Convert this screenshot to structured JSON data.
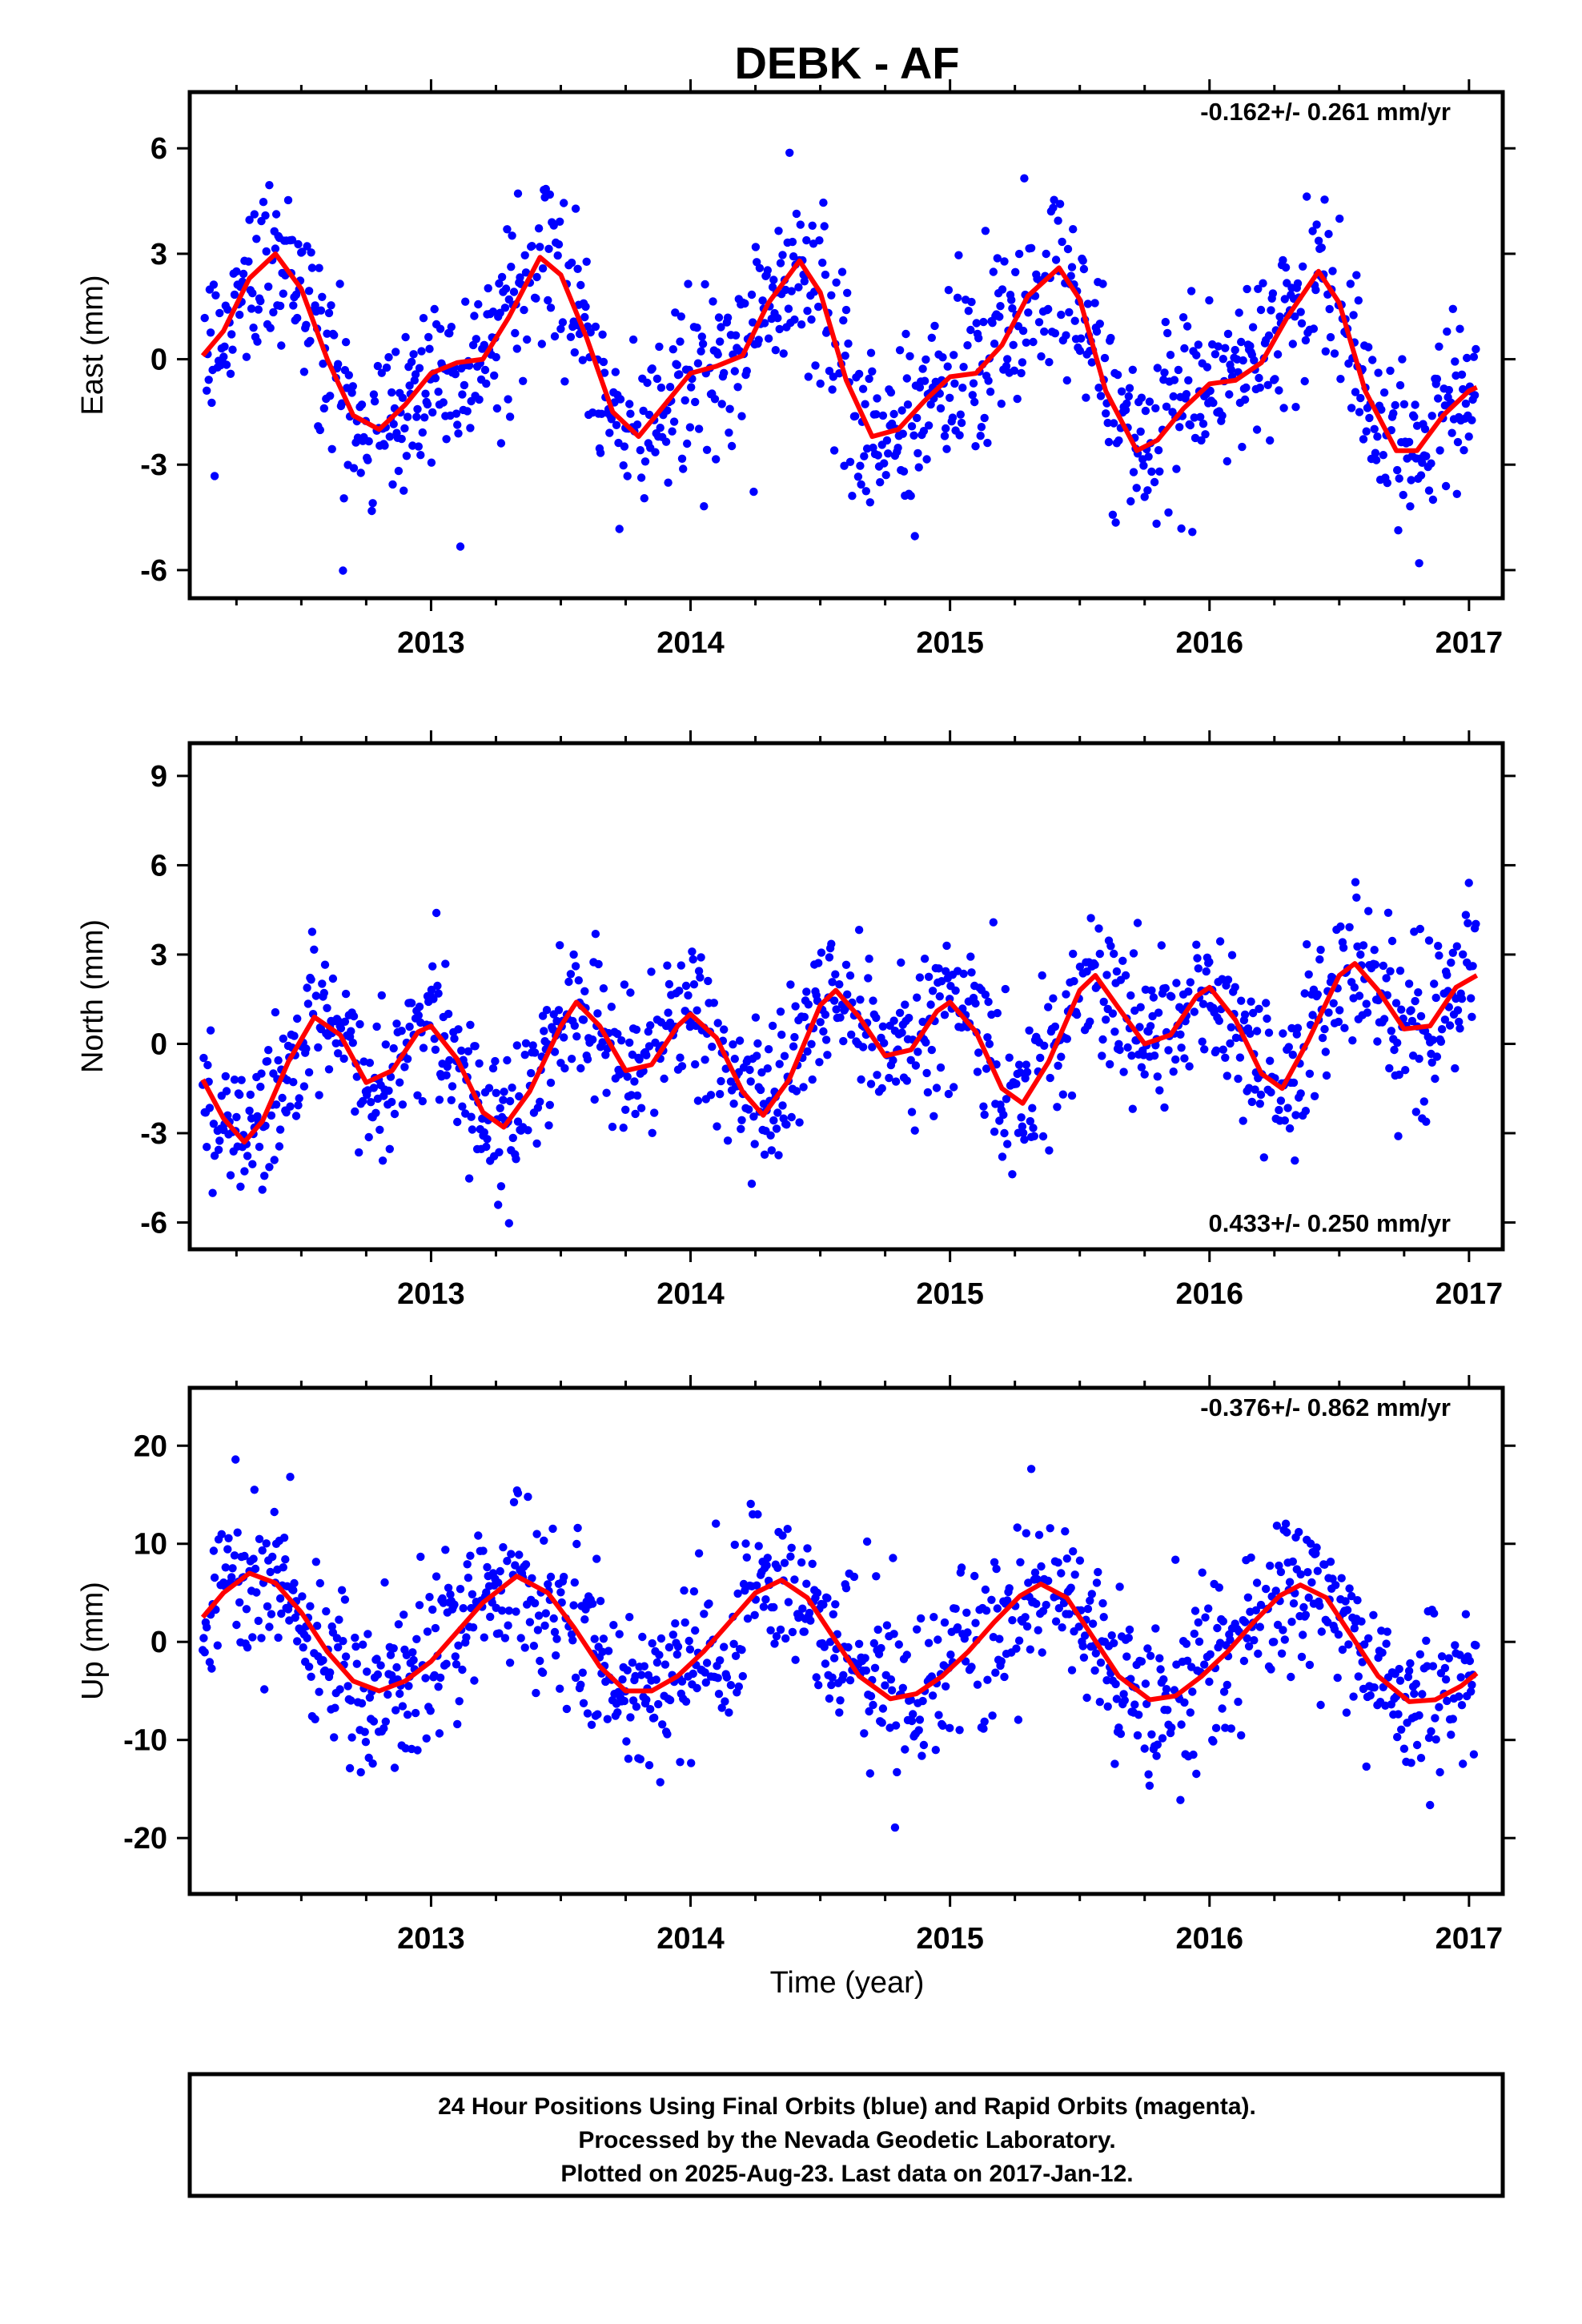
{
  "title": "DEBK - AF",
  "xlabel": "Time (year)",
  "footer": {
    "line1": "24 Hour Positions Using Final Orbits (blue) and Rapid Orbits (magenta).",
    "line2": "Processed by the Nevada Geodetic Laboratory.",
    "line3": "Plotted on 2025-Aug-23. Last data on 2017-Jan-12."
  },
  "colors": {
    "final_orbits": "#0000ff",
    "model": "#ff0000",
    "axes": "#000000"
  },
  "chart_data": [
    {
      "type": "scatter",
      "ylabel": "East (mm)",
      "rate_label": "-0.162+/- 0.261 mm/yr",
      "xlim": [
        2012.07,
        2017.13
      ],
      "ylim": [
        -6.8,
        7.6
      ],
      "xticks": [
        2013,
        2014,
        2015,
        2016,
        2017
      ],
      "yticks": [
        -6,
        -3,
        0,
        3,
        6
      ],
      "xrange_data": [
        2012.12,
        2017.03
      ],
      "scatter_sigma": 1.25,
      "model_points": [
        [
          2012.12,
          0.1
        ],
        [
          2012.2,
          0.8
        ],
        [
          2012.3,
          2.3
        ],
        [
          2012.4,
          3.0
        ],
        [
          2012.5,
          2.0
        ],
        [
          2012.6,
          0.0
        ],
        [
          2012.7,
          -1.6
        ],
        [
          2012.8,
          -2.0
        ],
        [
          2012.9,
          -1.3
        ],
        [
          2013.0,
          -0.4
        ],
        [
          2013.1,
          -0.1
        ],
        [
          2013.2,
          0.0
        ],
        [
          2013.3,
          1.2
        ],
        [
          2013.42,
          2.9
        ],
        [
          2013.5,
          2.4
        ],
        [
          2013.6,
          0.6
        ],
        [
          2013.7,
          -1.5
        ],
        [
          2013.8,
          -2.2
        ],
        [
          2013.9,
          -1.3
        ],
        [
          2014.0,
          -0.4
        ],
        [
          2014.1,
          -0.2
        ],
        [
          2014.2,
          0.1
        ],
        [
          2014.3,
          1.6
        ],
        [
          2014.42,
          2.8
        ],
        [
          2014.5,
          1.9
        ],
        [
          2014.6,
          -0.6
        ],
        [
          2014.7,
          -2.2
        ],
        [
          2014.8,
          -2.0
        ],
        [
          2014.9,
          -1.2
        ],
        [
          2015.0,
          -0.5
        ],
        [
          2015.1,
          -0.4
        ],
        [
          2015.2,
          0.4
        ],
        [
          2015.3,
          1.8
        ],
        [
          2015.42,
          2.6
        ],
        [
          2015.5,
          1.7
        ],
        [
          2015.6,
          -0.9
        ],
        [
          2015.72,
          -2.6
        ],
        [
          2015.8,
          -2.3
        ],
        [
          2015.9,
          -1.4
        ],
        [
          2016.0,
          -0.7
        ],
        [
          2016.1,
          -0.6
        ],
        [
          2016.2,
          -0.1
        ],
        [
          2016.3,
          1.2
        ],
        [
          2016.42,
          2.5
        ],
        [
          2016.5,
          1.6
        ],
        [
          2016.6,
          -0.9
        ],
        [
          2016.72,
          -2.6
        ],
        [
          2016.8,
          -2.6
        ],
        [
          2016.9,
          -1.6
        ],
        [
          2017.0,
          -0.9
        ],
        [
          2017.03,
          -0.8
        ]
      ]
    },
    {
      "type": "scatter",
      "ylabel": "North (mm)",
      "rate_label": "0.433+/- 0.250 mm/yr",
      "xlim": [
        2012.07,
        2017.13
      ],
      "ylim": [
        -6.9,
        10.1
      ],
      "xticks": [
        2013,
        2014,
        2015,
        2016,
        2017
      ],
      "yticks": [
        -6,
        -3,
        0,
        3,
        6,
        9
      ],
      "xrange_data": [
        2012.12,
        2017.03
      ],
      "scatter_sigma": 1.3,
      "model_points": [
        [
          2012.12,
          -1.2
        ],
        [
          2012.2,
          -2.5
        ],
        [
          2012.28,
          -3.3
        ],
        [
          2012.35,
          -2.6
        ],
        [
          2012.45,
          -0.6
        ],
        [
          2012.55,
          0.9
        ],
        [
          2012.65,
          0.3
        ],
        [
          2012.75,
          -1.3
        ],
        [
          2012.85,
          -0.9
        ],
        [
          2012.95,
          0.4
        ],
        [
          2013.0,
          0.6
        ],
        [
          2013.1,
          -0.5
        ],
        [
          2013.2,
          -2.3
        ],
        [
          2013.28,
          -2.8
        ],
        [
          2013.38,
          -1.6
        ],
        [
          2013.5,
          0.6
        ],
        [
          2013.56,
          1.4
        ],
        [
          2013.65,
          0.6
        ],
        [
          2013.75,
          -0.9
        ],
        [
          2013.85,
          -0.7
        ],
        [
          2013.95,
          0.6
        ],
        [
          2014.0,
          1.0
        ],
        [
          2014.1,
          0.2
        ],
        [
          2014.2,
          -1.6
        ],
        [
          2014.28,
          -2.4
        ],
        [
          2014.38,
          -1.2
        ],
        [
          2014.5,
          1.3
        ],
        [
          2014.56,
          1.8
        ],
        [
          2014.65,
          0.9
        ],
        [
          2014.75,
          -0.4
        ],
        [
          2014.85,
          -0.2
        ],
        [
          2014.95,
          1.1
        ],
        [
          2015.0,
          1.4
        ],
        [
          2015.1,
          0.4
        ],
        [
          2015.2,
          -1.5
        ],
        [
          2015.28,
          -2.0
        ],
        [
          2015.38,
          -0.6
        ],
        [
          2015.5,
          1.8
        ],
        [
          2015.56,
          2.3
        ],
        [
          2015.65,
          1.2
        ],
        [
          2015.75,
          0.0
        ],
        [
          2015.85,
          0.3
        ],
        [
          2015.95,
          1.6
        ],
        [
          2016.0,
          1.9
        ],
        [
          2016.1,
          0.8
        ],
        [
          2016.2,
          -1.0
        ],
        [
          2016.28,
          -1.5
        ],
        [
          2016.38,
          0.1
        ],
        [
          2016.5,
          2.3
        ],
        [
          2016.56,
          2.7
        ],
        [
          2016.65,
          1.8
        ],
        [
          2016.75,
          0.5
        ],
        [
          2016.85,
          0.6
        ],
        [
          2016.95,
          1.9
        ],
        [
          2017.03,
          2.3
        ]
      ]
    },
    {
      "type": "scatter",
      "ylabel": "Up (mm)",
      "rate_label": "-0.376+/- 0.862 mm/yr",
      "xlim": [
        2012.07,
        2017.13
      ],
      "ylim": [
        -25.7,
        25.9
      ],
      "xticks": [
        2013,
        2014,
        2015,
        2016,
        2017
      ],
      "yticks": [
        -20,
        -10,
        0,
        10,
        20
      ],
      "xrange_data": [
        2012.12,
        2017.03
      ],
      "scatter_sigma": 4.4,
      "model_points": [
        [
          2012.12,
          2.5
        ],
        [
          2012.2,
          5.0
        ],
        [
          2012.3,
          7.0
        ],
        [
          2012.4,
          6.0
        ],
        [
          2012.5,
          3.0
        ],
        [
          2012.6,
          -1.0
        ],
        [
          2012.7,
          -4.0
        ],
        [
          2012.8,
          -5.0
        ],
        [
          2012.9,
          -4.0
        ],
        [
          2013.0,
          -2.0
        ],
        [
          2013.1,
          1.0
        ],
        [
          2013.2,
          4.0
        ],
        [
          2013.33,
          6.7
        ],
        [
          2013.45,
          5.0
        ],
        [
          2013.55,
          1.5
        ],
        [
          2013.65,
          -2.5
        ],
        [
          2013.75,
          -5.0
        ],
        [
          2013.85,
          -5.0
        ],
        [
          2013.95,
          -3.5
        ],
        [
          2014.05,
          -1.0
        ],
        [
          2014.15,
          2.0
        ],
        [
          2014.25,
          5.0
        ],
        [
          2014.35,
          6.3
        ],
        [
          2014.45,
          4.5
        ],
        [
          2014.55,
          0.5
        ],
        [
          2014.65,
          -3.5
        ],
        [
          2014.77,
          -5.8
        ],
        [
          2014.87,
          -5.3
        ],
        [
          2014.97,
          -3.5
        ],
        [
          2015.07,
          -1.0
        ],
        [
          2015.17,
          2.0
        ],
        [
          2015.27,
          4.7
        ],
        [
          2015.35,
          5.9
        ],
        [
          2015.45,
          4.5
        ],
        [
          2015.55,
          0.5
        ],
        [
          2015.65,
          -3.5
        ],
        [
          2015.77,
          -5.9
        ],
        [
          2015.87,
          -5.5
        ],
        [
          2015.97,
          -3.5
        ],
        [
          2016.07,
          -1.0
        ],
        [
          2016.17,
          2.0
        ],
        [
          2016.27,
          4.7
        ],
        [
          2016.35,
          5.8
        ],
        [
          2016.45,
          4.5
        ],
        [
          2016.55,
          0.5
        ],
        [
          2016.65,
          -3.5
        ],
        [
          2016.77,
          -6.1
        ],
        [
          2016.87,
          -5.9
        ],
        [
          2016.97,
          -4.5
        ],
        [
          2017.03,
          -3.2
        ]
      ]
    }
  ]
}
